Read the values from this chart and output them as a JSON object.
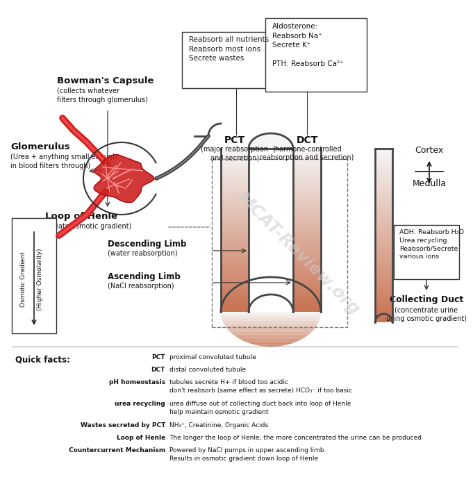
{
  "bg_color": "#ffffff",
  "fig_width": 6.56,
  "fig_height": 6.88,
  "bowmans_capsule_label": "Bowman's Capsule",
  "bowmans_sub": "(collects whatever\nfilters through glomerulus)",
  "glomerulus_label": "Glomerulus",
  "glomerulus_sub": "(Urea + anything small enough\nin blood filters through)",
  "pct_label": "PCT",
  "pct_sub": "(major reabsorption\nand secretion)",
  "dct_label": "DCT",
  "dct_sub": "(hormone-controlled\nreabsorption and secretion)",
  "pct_box_text": "Reabsorb all nutrients\nReabsorb most ions\nSecrete wastes",
  "dct_box_text": "Aldosterone:\nReabsorb Na⁺\nSecrete K⁺\n\nPTH: Reabsorb Ca²⁺",
  "loop_label": "Loop of Henle",
  "loop_sub": "(create osmotic gradient)",
  "desc_limb_label": "Descending Limb",
  "desc_limb_sub": "(water reabsorption)",
  "asc_limb_label": "Ascending Limb",
  "asc_limb_sub": "(NaCl reabsorption)",
  "cortex_label": "Cortex",
  "medulla_label": "Medulla",
  "collecting_duct_box": "ADH: Reabsorb H₂O\nUrea recycling\nReabsorb/Secrete\nvarious ions",
  "collecting_duct_label": "Collecting Duct",
  "collecting_duct_sub": "(concentrate urine\nusing osmotic gradient)",
  "osmotic_gradient_label": "Osmotic Gradient",
  "higher_osmolarity_label": "(Higher Osmolarity)",
  "watermark": "MCAT-Review.org",
  "quick_facts_title": "Quick facts:",
  "quick_facts": [
    [
      "PCT",
      "proximal convoluted tubule"
    ],
    [
      "DCT",
      "distal convoluted tubule"
    ],
    [
      "pH homeostasis",
      "tubules secrete H+ if blood too acidic\ndon't reabsorb (same effect as secrete) HCO₃⁻ if too basic"
    ],
    [
      "urea recycling",
      "urea diffuse out of collecting duct back into loop of Henle\nhelp maintain osmotic gradient"
    ],
    [
      "Wastes secreted by PCT",
      "NH₄⁺, Creatinine, Organic Acids"
    ],
    [
      "Loop of Henle",
      "The longer the loop of Henle, the more concentrated the urine can be produced"
    ],
    [
      "Countercurrent Mechanism",
      "Powered by NaCl pumps in upper ascending limb.\nResults in osmotic gradient down loop of Henle"
    ]
  ]
}
